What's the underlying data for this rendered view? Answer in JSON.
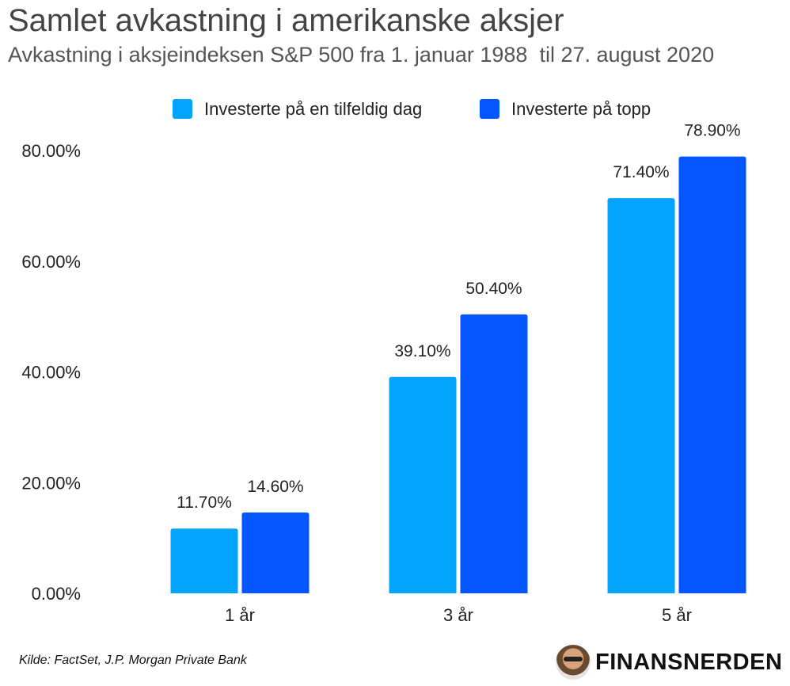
{
  "header": {
    "title": "Samlet avkastning i amerikanske aksjer",
    "subtitle": "Avkastning i aksjeindeksen S&P 500 fra 1. januar 1988  til 27. august 2020"
  },
  "footer": {
    "source": "Kilde: FactSet, J.P. Morgan Private Bank",
    "brand": "FINANSNERDEN"
  },
  "colors": {
    "series_1": "#03a5fc",
    "series_2": "#0457ff",
    "title_text": "#444444"
  },
  "chart_data": {
    "type": "bar",
    "title": "Samlet avkastning i amerikanske aksjer",
    "xlabel": "",
    "ylabel": "",
    "categories": [
      "1 år",
      "3 år",
      "5 år"
    ],
    "series": [
      {
        "name": "Investerte på en tilfeldig dag",
        "values": [
          11.7,
          39.1,
          71.4
        ],
        "labels": [
          "11.70%",
          "39.10%",
          "71.40%"
        ]
      },
      {
        "name": "Investerte på topp",
        "values": [
          14.6,
          50.4,
          78.9
        ],
        "labels": [
          "14.60%",
          "50.40%",
          "78.90%"
        ]
      }
    ],
    "ylim": [
      0,
      80
    ],
    "yticks": [
      0,
      20,
      40,
      60,
      80
    ],
    "ytick_labels": [
      "0.00%",
      "20.00%",
      "40.00%",
      "60.00%",
      "80.00%"
    ],
    "grid": false,
    "legend_position": "top-center"
  }
}
